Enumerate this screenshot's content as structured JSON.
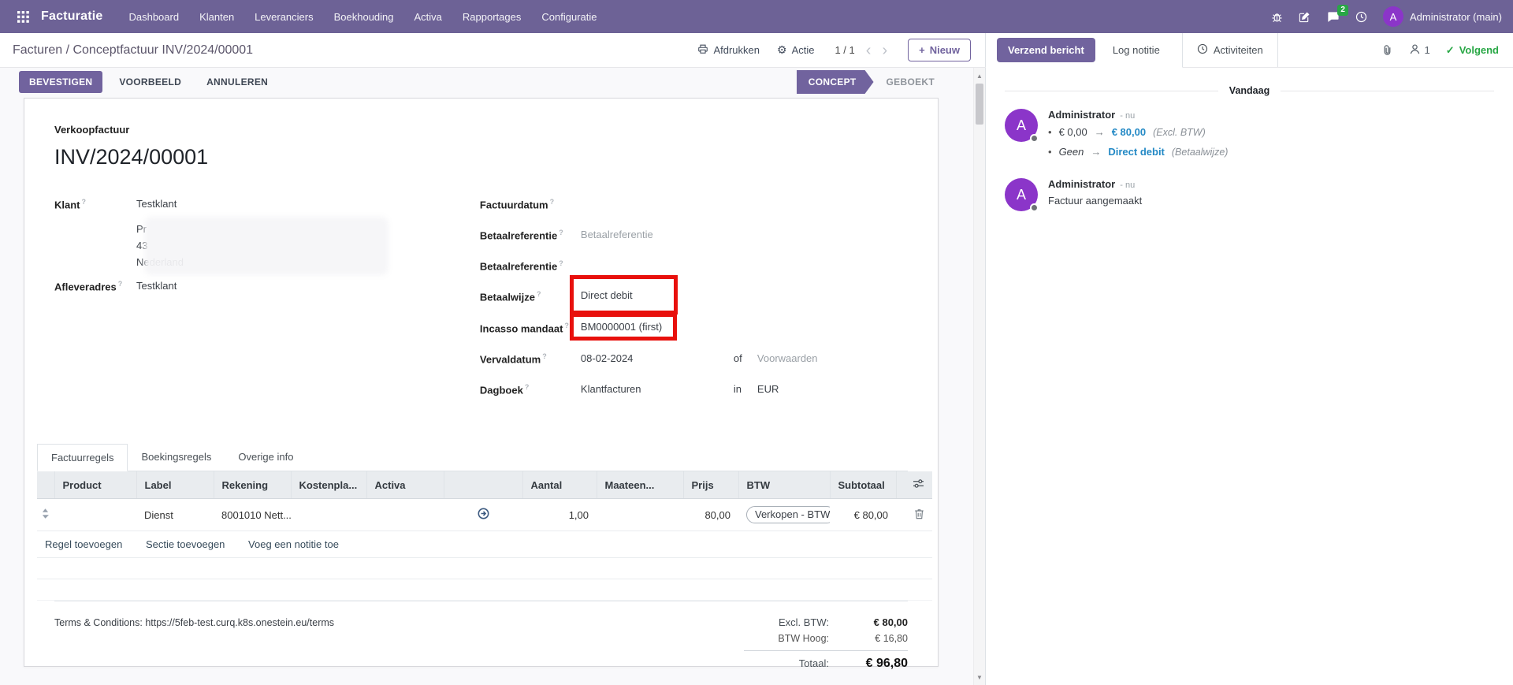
{
  "icons": {
    "gear": "⚙",
    "plus": "+",
    "check": "✓",
    "chevron_left": "‹",
    "chevron_right": "›",
    "bullet": "•",
    "arrow_right": "→",
    "scroll_up": "▲",
    "scroll_down": "▼",
    "question": "?"
  },
  "navbar": {
    "brand": "Facturatie",
    "menus": [
      "Dashboard",
      "Klanten",
      "Leveranciers",
      "Boekhouding",
      "Activa",
      "Rapportages",
      "Configuratie"
    ],
    "unread_badge": "2",
    "user_name": "Administrator (main)",
    "avatar_initial": "A"
  },
  "control_panel": {
    "breadcrumb": "Facturen / Conceptfactuur INV/2024/00001",
    "print": "Afdrukken",
    "action": "Actie",
    "pager": "1 / 1",
    "new": "Nieuw"
  },
  "statusbar": {
    "confirm": "BEVESTIGEN",
    "preview": "VOORBEELD",
    "cancel": "ANNULEREN",
    "state_draft": "CONCEPT",
    "state_posted": "GEBOEKT"
  },
  "invoice": {
    "type_label": "Verkoopfactuur",
    "number": "INV/2024/00001",
    "klant_label": "Klant",
    "klant_value": "Testklant",
    "address_lines": [
      "Pr",
      "43",
      "Nederland"
    ],
    "afleveradres_label": "Afleveradres",
    "afleveradres_value": "Testklant",
    "factuurdatum_label": "Factuurdatum",
    "betaalreferentie_label": "Betaalreferentie",
    "betaalreferentie_placeholder": "Betaalreferentie",
    "betaalreferentie2_label": "Betaalreferentie",
    "betaalwijze_label": "Betaalwijze",
    "betaalwijze_value": "Direct debit",
    "incasso_label": "Incasso mandaat",
    "incasso_value": "BM0000001 (first)",
    "vervaldatum_label": "Vervaldatum",
    "vervaldatum_value": "08-02-2024",
    "of_label": "of",
    "voorwaarden_placeholder": "Voorwaarden",
    "dagboek_label": "Dagboek",
    "dagboek_value": "Klantfacturen",
    "in_label": "in",
    "currency": "EUR"
  },
  "tabs": [
    "Factuurregels",
    "Boekingsregels",
    "Overige info"
  ],
  "lines": {
    "headers": [
      "Product",
      "Label",
      "Rekening",
      "Kostenpla...",
      "Activa",
      "Aantal",
      "Maateen...",
      "Prijs",
      "BTW",
      "Subtotaal"
    ],
    "row": {
      "label": "Dienst",
      "rekening": "8001010 Nett...",
      "aantal": "1,00",
      "prijs": "80,00",
      "btw_tag": "Verkopen - BTW",
      "subtotaal": "€ 80,00"
    },
    "add_line": "Regel toevoegen",
    "add_section": "Sectie toevoegen",
    "add_note": "Voeg een notitie toe"
  },
  "footer": {
    "terms": "Terms & Conditions: https://5feb-test.curq.k8s.onestein.eu/terms",
    "excl_btw_label": "Excl. BTW:",
    "excl_btw_value": "€ 80,00",
    "btw_hoog_label": "BTW Hoog:",
    "btw_hoog_value": "€ 16,80",
    "totaal_label": "Totaal:",
    "totaal_value": "€ 96,80"
  },
  "chatter": {
    "send_button": "Verzend bericht",
    "log_button": "Log notitie",
    "activities_button": "Activiteiten",
    "followers_count": "1",
    "follow_label": "Volgend",
    "date_divider": "Vandaag",
    "messages": [
      {
        "author": "Administrator",
        "time": "- nu",
        "changes": [
          {
            "old": "€ 0,00",
            "new": "€ 80,00",
            "field": "(Excl. BTW)"
          },
          {
            "old": "Geen",
            "new": "Direct debit",
            "field": "(Betaalwijze)"
          }
        ]
      },
      {
        "author": "Administrator",
        "time": "- nu",
        "body": "Factuur aangemaakt"
      }
    ]
  },
  "colors": {
    "navbar": "#6d6296",
    "primary": "#71639e",
    "avatar": "#8b35c9",
    "success": "#28a745",
    "tracking_blue": "#2389c5",
    "highlight_red": "#e8100c"
  }
}
